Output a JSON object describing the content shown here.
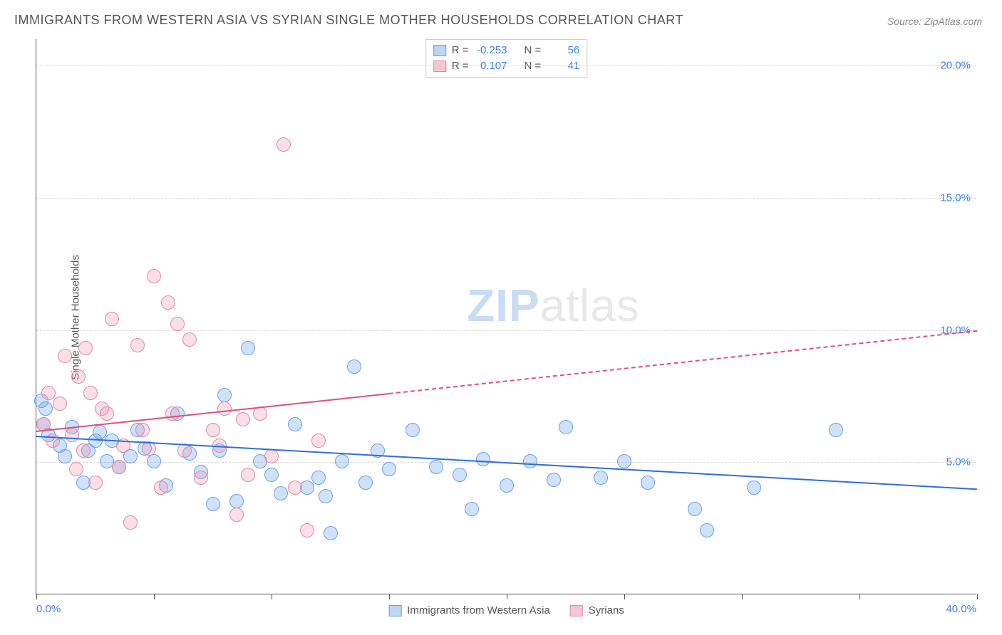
{
  "title": "IMMIGRANTS FROM WESTERN ASIA VS SYRIAN SINGLE MOTHER HOUSEHOLDS CORRELATION CHART",
  "source": "Source: ZipAtlas.com",
  "watermark_a": "ZIP",
  "watermark_b": "atlas",
  "chart": {
    "type": "scatter",
    "ylabel": "Single Mother Households",
    "xlim": [
      0,
      40
    ],
    "ylim": [
      0,
      21
    ],
    "ytick_values": [
      5,
      10,
      15,
      20
    ],
    "ytick_labels": [
      "5.0%",
      "10.0%",
      "15.0%",
      "20.0%"
    ],
    "xlim_labels": [
      "0.0%",
      "40.0%"
    ],
    "xtick_positions": [
      0,
      5,
      10,
      15,
      20,
      25,
      30,
      35,
      40
    ],
    "background_color": "#ffffff",
    "grid_color": "#d8d8d8",
    "axis_color": "#555555",
    "tick_label_color": "#3d7ff0",
    "point_radius": 10,
    "point_stroke_width": 1.5,
    "series": [
      {
        "name": "Immigrants from Western Asia",
        "fill": "rgba(120,170,240,0.35)",
        "stroke": "#6aa0e8",
        "swatch_fill": "#bcd5f2",
        "swatch_stroke": "#6aa0e8",
        "R": "-0.253",
        "N": "56",
        "trend": {
          "x1": 0,
          "y1": 6.0,
          "x2": 40,
          "y2": 4.0,
          "color": "#2d6fd8",
          "width": 2.5,
          "dash_from_x": null
        },
        "points": [
          [
            0.2,
            7.3
          ],
          [
            0.3,
            6.4
          ],
          [
            0.4,
            7.0
          ],
          [
            0.5,
            6.0
          ],
          [
            1.0,
            5.6
          ],
          [
            1.2,
            5.2
          ],
          [
            1.5,
            6.3
          ],
          [
            2.0,
            4.2
          ],
          [
            2.2,
            5.4
          ],
          [
            2.5,
            5.8
          ],
          [
            2.7,
            6.1
          ],
          [
            3.0,
            5.0
          ],
          [
            3.2,
            5.8
          ],
          [
            3.5,
            4.8
          ],
          [
            4.0,
            5.2
          ],
          [
            4.3,
            6.2
          ],
          [
            4.6,
            5.5
          ],
          [
            5.0,
            5.0
          ],
          [
            5.5,
            4.1
          ],
          [
            6.0,
            6.8
          ],
          [
            6.5,
            5.3
          ],
          [
            7.0,
            4.6
          ],
          [
            7.5,
            3.4
          ],
          [
            7.8,
            5.4
          ],
          [
            8.0,
            7.5
          ],
          [
            8.5,
            3.5
          ],
          [
            9.0,
            9.3
          ],
          [
            9.5,
            5.0
          ],
          [
            10.0,
            4.5
          ],
          [
            10.4,
            3.8
          ],
          [
            11.0,
            6.4
          ],
          [
            11.5,
            4.0
          ],
          [
            12.0,
            4.4
          ],
          [
            12.3,
            3.7
          ],
          [
            12.5,
            2.3
          ],
          [
            13.0,
            5.0
          ],
          [
            13.5,
            8.6
          ],
          [
            14.0,
            4.2
          ],
          [
            14.5,
            5.4
          ],
          [
            15.0,
            4.7
          ],
          [
            16.0,
            6.2
          ],
          [
            17.0,
            4.8
          ],
          [
            18.0,
            4.5
          ],
          [
            18.5,
            3.2
          ],
          [
            19.0,
            5.1
          ],
          [
            20.0,
            4.1
          ],
          [
            21.0,
            5.0
          ],
          [
            22.0,
            4.3
          ],
          [
            22.5,
            6.3
          ],
          [
            24.0,
            4.4
          ],
          [
            25.0,
            5.0
          ],
          [
            26.0,
            4.2
          ],
          [
            28.0,
            3.2
          ],
          [
            28.5,
            2.4
          ],
          [
            30.5,
            4.0
          ],
          [
            34.0,
            6.2
          ]
        ]
      },
      {
        "name": "Syrians",
        "fill": "rgba(240,150,175,0.30)",
        "stroke": "#e08aa0",
        "swatch_fill": "#f3c8d4",
        "swatch_stroke": "#e08aa0",
        "R": "0.107",
        "N": "41",
        "trend": {
          "x1": 0,
          "y1": 6.2,
          "x2": 40,
          "y2": 10.0,
          "color": "#e05078",
          "width": 2,
          "dash_from_x": 15
        },
        "points": [
          [
            0.3,
            6.4
          ],
          [
            0.5,
            7.6
          ],
          [
            0.7,
            5.8
          ],
          [
            1.0,
            7.2
          ],
          [
            1.2,
            9.0
          ],
          [
            1.5,
            6.0
          ],
          [
            1.7,
            4.7
          ],
          [
            1.8,
            8.2
          ],
          [
            2.0,
            5.4
          ],
          [
            2.1,
            9.3
          ],
          [
            2.3,
            7.6
          ],
          [
            2.5,
            4.2
          ],
          [
            2.8,
            7.0
          ],
          [
            3.0,
            6.8
          ],
          [
            3.2,
            10.4
          ],
          [
            3.5,
            4.8
          ],
          [
            3.7,
            5.6
          ],
          [
            4.0,
            2.7
          ],
          [
            4.3,
            9.4
          ],
          [
            4.5,
            6.2
          ],
          [
            4.8,
            5.5
          ],
          [
            5.0,
            12.0
          ],
          [
            5.3,
            4.0
          ],
          [
            5.6,
            11.0
          ],
          [
            5.8,
            6.8
          ],
          [
            6.0,
            10.2
          ],
          [
            6.3,
            5.4
          ],
          [
            6.5,
            9.6
          ],
          [
            7.0,
            4.4
          ],
          [
            7.5,
            6.2
          ],
          [
            7.8,
            5.6
          ],
          [
            8.0,
            7.0
          ],
          [
            8.5,
            3.0
          ],
          [
            8.8,
            6.6
          ],
          [
            9.0,
            4.5
          ],
          [
            9.5,
            6.8
          ],
          [
            10.0,
            5.2
          ],
          [
            10.5,
            17.0
          ],
          [
            11.0,
            4.0
          ],
          [
            11.5,
            2.4
          ],
          [
            12.0,
            5.8
          ]
        ]
      }
    ],
    "legend_bottom": [
      {
        "label": "Immigrants from Western Asia",
        "fill": "#bcd5f2",
        "stroke": "#6aa0e8"
      },
      {
        "label": "Syrians",
        "fill": "#f3c8d4",
        "stroke": "#e08aa0"
      }
    ],
    "stats_labels": {
      "R": "R =",
      "N": "N ="
    }
  }
}
